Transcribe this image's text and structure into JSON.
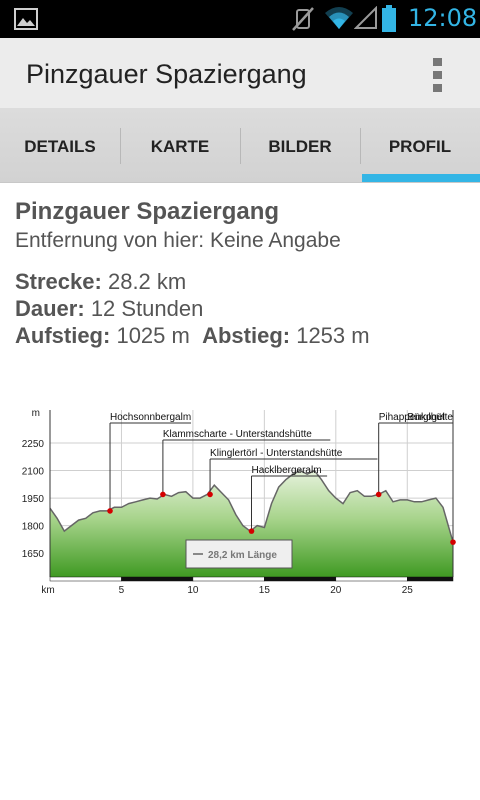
{
  "status_bar": {
    "time": "12:08"
  },
  "action_bar": {
    "title": "Pinzgauer Spaziergang"
  },
  "tabs": [
    {
      "label": "DETAILS",
      "selected": false
    },
    {
      "label": "KARTE",
      "selected": false
    },
    {
      "label": "BILDER",
      "selected": false
    },
    {
      "label": "PROFIL",
      "selected": true
    }
  ],
  "details": {
    "title": "Pinzgauer Spaziergang",
    "distance_from_here": "Entfernung von hier: Keine Angabe",
    "route_label": "Strecke:",
    "route_value": "28.2 km",
    "duration_label": "Dauer:",
    "duration_value": "12 Stunden",
    "ascent_label": "Aufstieg:",
    "ascent_value": "1025 m",
    "descent_label": "Abstieg:",
    "descent_value": "1253 m"
  },
  "colors": {
    "accent": "#33b5e5",
    "profile_fill": "#5aa83a",
    "marker": "#d40000"
  },
  "chart_data": {
    "type": "area",
    "ylabel": "m",
    "xlabel": "km",
    "ylim": [
      1520,
      2430
    ],
    "xlim": [
      0,
      28.2
    ],
    "y_ticks": [
      1650,
      1800,
      1950,
      2100,
      2250
    ],
    "x_ticks": [
      5,
      10,
      15,
      20,
      25
    ],
    "length_label": "28,2 km Länge",
    "series": [
      {
        "x": [
          0,
          0.5,
          1.0,
          1.5,
          2.0,
          2.5,
          3.0,
          3.5,
          4.0,
          4.5,
          5.0,
          5.5,
          6.0,
          6.5,
          7.0,
          7.5,
          8.0,
          8.5,
          9.0,
          9.5,
          10.0,
          10.5,
          11.0,
          11.5,
          12.0,
          12.5,
          13.0,
          13.5,
          14.0,
          14.5,
          15.0,
          15.5,
          16.0,
          16.5,
          17.0,
          17.5,
          18.0,
          18.5,
          19.0,
          19.5,
          20.0,
          20.5,
          21.0,
          21.5,
          22.0,
          22.5,
          23.0,
          23.5,
          24.0,
          24.5,
          25.0,
          25.5,
          26.0,
          26.5,
          27.0,
          27.5,
          28.2
        ],
        "y": [
          1895,
          1840,
          1770,
          1800,
          1830,
          1840,
          1870,
          1880,
          1880,
          1900,
          1900,
          1920,
          1930,
          1940,
          1950,
          1945,
          1970,
          1960,
          1980,
          1985,
          1950,
          1950,
          1970,
          2020,
          1980,
          1940,
          1860,
          1800,
          1770,
          1800,
          1790,
          1920,
          2010,
          2050,
          2080,
          2100,
          2080,
          2100,
          2050,
          1990,
          1950,
          1920,
          1980,
          1990,
          1960,
          1960,
          1970,
          1990,
          1930,
          1940,
          1940,
          1930,
          1930,
          1940,
          1950,
          1900,
          1710
        ]
      }
    ],
    "annotations": [
      {
        "label": "Hochsonnbergalm",
        "x": 4.2,
        "y": 1880
      },
      {
        "label": "Klammscharte - Unterstandshütte",
        "x": 7.9,
        "y": 1970
      },
      {
        "label": "Klinglertörl - Unterstandshütte",
        "x": 11.2,
        "y": 1970
      },
      {
        "label": "Hacklbergeralm",
        "x": 14.1,
        "y": 1770
      },
      {
        "label": "Pihappenkogel",
        "x": 23.0,
        "y": 1970
      },
      {
        "label": "Bürglhütte",
        "x": 28.2,
        "y": 1710
      }
    ]
  }
}
